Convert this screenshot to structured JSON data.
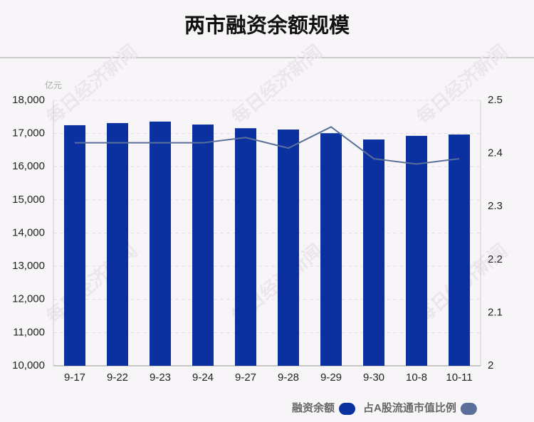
{
  "chart_data": {
    "type": "bar-line",
    "title": "两市融资余额规模",
    "y_unit": "亿元",
    "watermark": "每日经济新闻",
    "categories": [
      "9-17",
      "9-22",
      "9-23",
      "9-24",
      "9-27",
      "9-28",
      "9-29",
      "9-30",
      "10-8",
      "10-11"
    ],
    "series": [
      {
        "name": "融资余额",
        "type": "bar",
        "color": "#0b31a0",
        "values": [
          17250,
          17315,
          17360,
          17270,
          17160,
          17120,
          17010,
          16820,
          16930,
          16970
        ]
      },
      {
        "name": "占A股流通市值比例",
        "type": "line",
        "axis": "y2",
        "color": "#5a6f9a",
        "values": [
          2.42,
          2.42,
          2.42,
          2.42,
          2.43,
          2.41,
          2.45,
          2.39,
          2.38,
          2.39
        ]
      }
    ],
    "ylim": [
      10000,
      18000
    ],
    "yticks": [
      {
        "value": 10000,
        "label": "10,000"
      },
      {
        "value": 11000,
        "label": "11,000"
      },
      {
        "value": 12000,
        "label": "12,000"
      },
      {
        "value": 13000,
        "label": "13,000"
      },
      {
        "value": 14000,
        "label": "14,000"
      },
      {
        "value": 15000,
        "label": "15,000"
      },
      {
        "value": 16000,
        "label": "16,000"
      },
      {
        "value": 17000,
        "label": "17,000"
      },
      {
        "value": 18000,
        "label": "18,000"
      }
    ],
    "y2lim": [
      2,
      2.5
    ],
    "y2ticks": [
      2,
      2.1,
      2.2,
      2.3,
      2.4,
      2.5
    ],
    "grid": true,
    "legend": "bottom-right"
  }
}
